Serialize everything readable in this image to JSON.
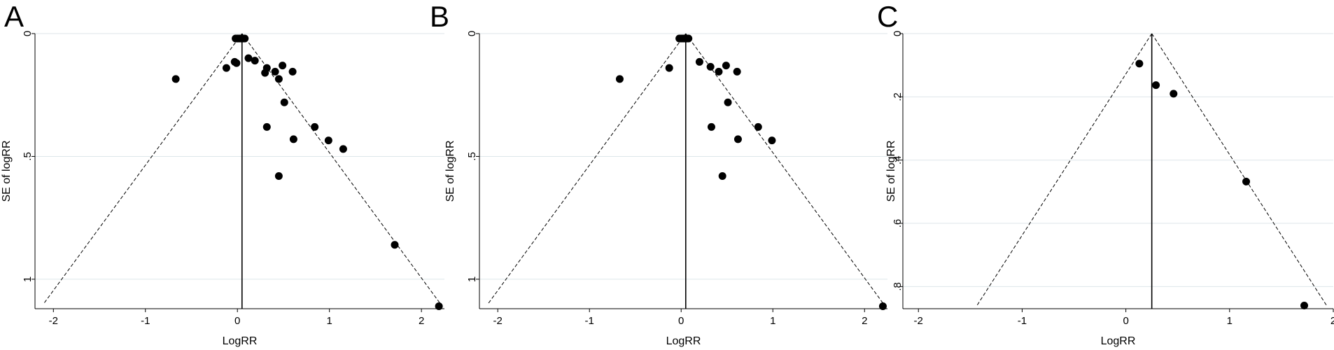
{
  "chart_data": [
    {
      "type": "scatter",
      "panel_label": "A",
      "xlabel": "LogRR",
      "ylabel": "SE of logRR",
      "y_inverted": true,
      "xlim": [
        -2.2,
        2.25
      ],
      "ylim": [
        0,
        1.12
      ],
      "x_ticks": [
        -2,
        -1,
        0,
        1,
        2
      ],
      "y_ticks": [
        0,
        0.5,
        1
      ],
      "x_tick_labels": [
        "-2",
        "-1",
        "0",
        "1",
        "2"
      ],
      "y_tick_labels": [
        "0",
        ".5",
        "1"
      ],
      "grid": "horizontal",
      "pooled_estimate": 0.05,
      "funnel_max_se": 1.1,
      "colors": {
        "points": "#000000",
        "grid": "#dde6ea",
        "lines": "#000000"
      },
      "points": [
        {
          "x": -0.02,
          "y": 0.02
        },
        {
          "x": 0.0,
          "y": 0.02
        },
        {
          "x": 0.02,
          "y": 0.02
        },
        {
          "x": 0.04,
          "y": 0.02
        },
        {
          "x": 0.06,
          "y": 0.02
        },
        {
          "x": 0.08,
          "y": 0.02
        },
        {
          "x": 0.12,
          "y": 0.1
        },
        {
          "x": 0.19,
          "y": 0.11
        },
        {
          "x": -0.03,
          "y": 0.115
        },
        {
          "x": -0.01,
          "y": 0.12
        },
        {
          "x": -0.12,
          "y": 0.14
        },
        {
          "x": 0.32,
          "y": 0.14
        },
        {
          "x": 0.49,
          "y": 0.13
        },
        {
          "x": 0.41,
          "y": 0.155
        },
        {
          "x": 0.3,
          "y": 0.16
        },
        {
          "x": 0.6,
          "y": 0.155
        },
        {
          "x": 0.45,
          "y": 0.185
        },
        {
          "x": -0.67,
          "y": 0.185
        },
        {
          "x": 0.51,
          "y": 0.28
        },
        {
          "x": 0.32,
          "y": 0.38
        },
        {
          "x": 0.84,
          "y": 0.38
        },
        {
          "x": 0.61,
          "y": 0.43
        },
        {
          "x": 0.99,
          "y": 0.435
        },
        {
          "x": 1.15,
          "y": 0.47
        },
        {
          "x": 0.45,
          "y": 0.58
        },
        {
          "x": 1.71,
          "y": 0.86
        },
        {
          "x": 2.19,
          "y": 1.11
        }
      ]
    },
    {
      "type": "scatter",
      "panel_label": "B",
      "xlabel": "LogRR",
      "ylabel": "SE of logRR",
      "y_inverted": true,
      "xlim": [
        -2.2,
        2.25
      ],
      "ylim": [
        0,
        1.12
      ],
      "x_ticks": [
        -2,
        -1,
        0,
        1,
        2
      ],
      "y_ticks": [
        0,
        0.5,
        1
      ],
      "x_tick_labels": [
        "-2",
        "-1",
        "0",
        "1",
        "2"
      ],
      "y_tick_labels": [
        "0",
        ".5",
        "1"
      ],
      "grid": "horizontal",
      "pooled_estimate": 0.05,
      "funnel_max_se": 1.1,
      "colors": {
        "points": "#000000",
        "grid": "#dde6ea",
        "lines": "#000000"
      },
      "points": [
        {
          "x": -0.02,
          "y": 0.02
        },
        {
          "x": 0.0,
          "y": 0.02
        },
        {
          "x": 0.02,
          "y": 0.02
        },
        {
          "x": 0.04,
          "y": 0.02
        },
        {
          "x": 0.06,
          "y": 0.02
        },
        {
          "x": 0.08,
          "y": 0.02
        },
        {
          "x": 0.2,
          "y": 0.115
        },
        {
          "x": -0.13,
          "y": 0.14
        },
        {
          "x": 0.32,
          "y": 0.135
        },
        {
          "x": 0.49,
          "y": 0.13
        },
        {
          "x": 0.41,
          "y": 0.155
        },
        {
          "x": 0.61,
          "y": 0.155
        },
        {
          "x": -0.67,
          "y": 0.185
        },
        {
          "x": 0.51,
          "y": 0.28
        },
        {
          "x": 0.33,
          "y": 0.38
        },
        {
          "x": 0.84,
          "y": 0.38
        },
        {
          "x": 0.62,
          "y": 0.43
        },
        {
          "x": 0.99,
          "y": 0.435
        },
        {
          "x": 0.45,
          "y": 0.58
        },
        {
          "x": 2.2,
          "y": 1.11
        }
      ]
    },
    {
      "type": "scatter",
      "panel_label": "C",
      "xlabel": "LogRR",
      "ylabel": "SE of logRR",
      "y_inverted": true,
      "xlim": [
        -2.15,
        2.0
      ],
      "ylim": [
        0,
        0.87
      ],
      "x_ticks": [
        -2,
        -1,
        0,
        1,
        2
      ],
      "y_ticks": [
        0,
        0.2,
        0.4,
        0.6,
        0.8
      ],
      "x_tick_labels": [
        "-2",
        "-1",
        "0",
        "1",
        "2"
      ],
      "y_tick_labels": [
        "0",
        ".2",
        ".4",
        ".6",
        ".8"
      ],
      "grid": "horizontal",
      "pooled_estimate": 0.25,
      "funnel_max_se": 0.86,
      "colors": {
        "points": "#000000",
        "grid": "#dde6ea",
        "lines": "#000000"
      },
      "points": [
        {
          "x": 0.13,
          "y": 0.095
        },
        {
          "x": 0.29,
          "y": 0.163
        },
        {
          "x": 0.46,
          "y": 0.19
        },
        {
          "x": 1.16,
          "y": 0.468
        },
        {
          "x": 1.72,
          "y": 0.86
        }
      ]
    }
  ]
}
